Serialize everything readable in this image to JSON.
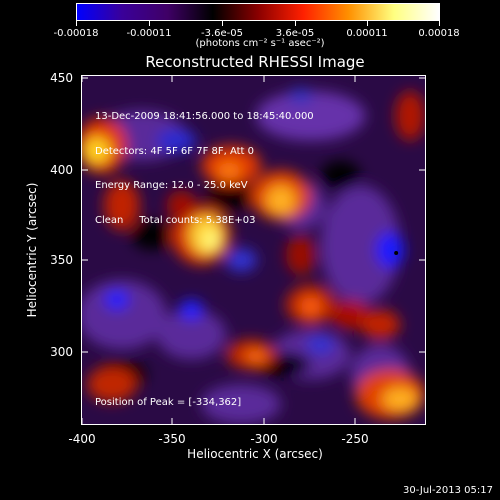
{
  "colorbar": {
    "ticks": [
      "-0.00018",
      "-0.00011",
      "-3.6e-05",
      "3.6e-05",
      "0.00011",
      "0.00018"
    ],
    "unit": "(photons cm⁻² s⁻¹ asec⁻²)",
    "gradient_colors": [
      "#0000ff",
      "#3a0099",
      "#3f0066",
      "#000000",
      "#8a0000",
      "#ff2000",
      "#ff9000",
      "#ffff80",
      "#ffffff"
    ]
  },
  "title": "Reconstructed RHESSI Image",
  "info": {
    "time": "13-Dec-2009 18:41:56.000 to 18:45:40.000",
    "detectors": "Detectors: 4F 5F 6F 7F 8F, Att 0",
    "energy": "Energy Range: 12.0 - 25.0 keV",
    "clean": "Clean     Total counts: 5.38E+03"
  },
  "peak": "Position of Peak = [-334,362]",
  "axes": {
    "xlabel": "Heliocentric X (arcsec)",
    "ylabel": "Heliocentric Y (arcsec)",
    "xticks": [
      "-400",
      "-350",
      "-300",
      "-250"
    ],
    "yticks": [
      "450",
      "400",
      "350",
      "300"
    ]
  },
  "footer": "30-Jul-2013 05:17"
}
